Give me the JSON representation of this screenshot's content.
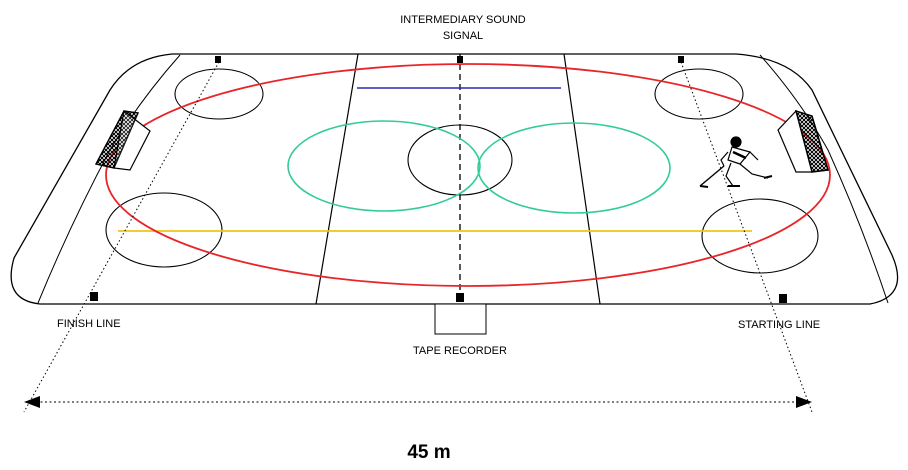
{
  "labels": {
    "intermediary_line1": "INTERMEDIARY SOUND",
    "intermediary_line2": "SIGNAL",
    "finish_line": "FINISH LINE",
    "starting_line": "STARTING LINE",
    "tape_recorder": "TAPE RECORDER",
    "distance": "45 m"
  },
  "colors": {
    "outline": "#000000",
    "skating_path": "#e8262a",
    "blue_line": "#2a2ab0",
    "yellow_line": "#f0c419",
    "center_circles": "#33cc99"
  },
  "icons": [
    "hockey-goal-icon",
    "hockey-player-icon",
    "speaker-marker-icon"
  ]
}
